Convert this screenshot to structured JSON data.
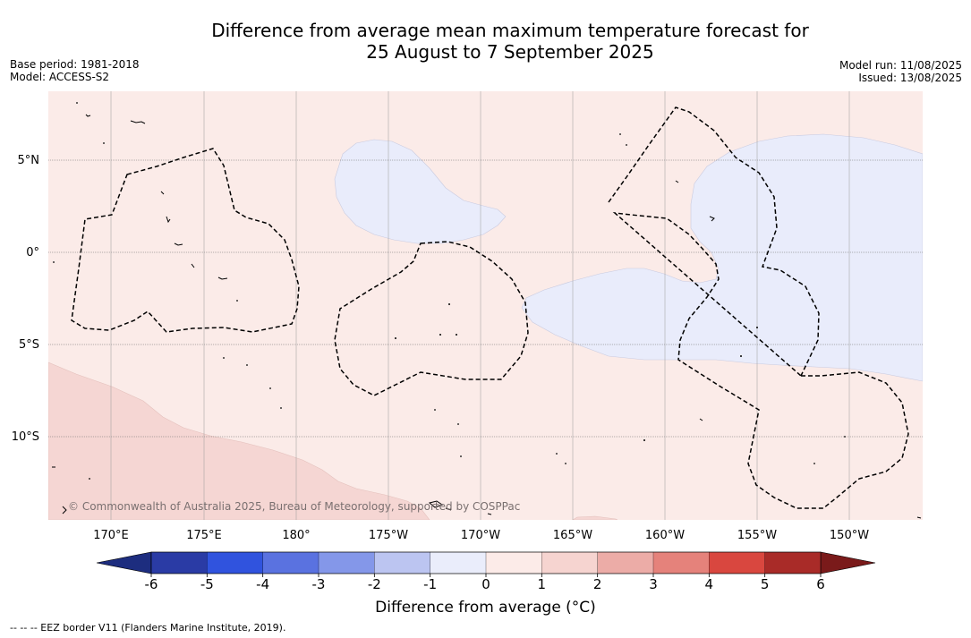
{
  "title": {
    "line1": "Difference from average mean maximum temperature forecast for",
    "line2": "25 August to 7 September 2025"
  },
  "meta": {
    "base_period": "Base period: 1981-2018",
    "model": "Model: ACCESS-S2",
    "model_run": "Model run: 11/08/2025",
    "issued": "Issued: 13/08/2025"
  },
  "map": {
    "copyright": "© Commonwealth of Australia 2025, Bureau of Meteorology, supported by COSPPac",
    "lon_ticks": [
      "170°E",
      "175°E",
      "180°",
      "175°W",
      "170°W",
      "165°W",
      "160°W",
      "155°W",
      "150°W"
    ],
    "lat_ticks": [
      "5°N",
      "0°",
      "5°S",
      "10°S"
    ],
    "colors": {
      "anomaly_0_to_1": "#fbebe8",
      "anomaly_1_to_2": "#f5d6d3",
      "anomaly_minus1_to_0": "#e9ecfb",
      "eez_border": "#000000"
    }
  },
  "colorbar": {
    "ticks": [
      "-6",
      "-5",
      "-4",
      "-3",
      "-2",
      "-1",
      "0",
      "1",
      "2",
      "3",
      "4",
      "5",
      "6"
    ],
    "colors": [
      "#2a3ba5",
      "#3053de",
      "#5a72e0",
      "#8497e9",
      "#bcc5f1",
      "#eaedfb",
      "#fcebe8",
      "#f6d4d0",
      "#ecaca7",
      "#e5827b",
      "#d9473f",
      "#a92b28"
    ],
    "below_color": "#1d2d7f",
    "above_color": "#7a1a1a",
    "label": "Difference from average (°C)"
  },
  "legend": {
    "eez": "--  --  -- EEZ border V11 (Flanders Marine Institute, 2019)."
  }
}
